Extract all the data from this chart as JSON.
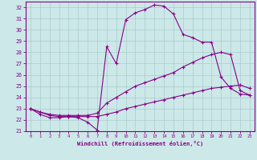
{
  "bg_color": "#cce8e8",
  "grid_color": "#aacccc",
  "line_color": "#880088",
  "xlim": [
    -0.5,
    23.5
  ],
  "ylim": [
    21,
    32.5
  ],
  "xticks": [
    0,
    1,
    2,
    3,
    4,
    5,
    6,
    7,
    8,
    9,
    10,
    11,
    12,
    13,
    14,
    15,
    16,
    17,
    18,
    19,
    20,
    21,
    22,
    23
  ],
  "yticks": [
    21,
    22,
    23,
    24,
    25,
    26,
    27,
    28,
    29,
    30,
    31,
    32
  ],
  "xlabel": "Windchill (Refroidissement éolien,°C)",
  "line1_x": [
    0,
    1,
    2,
    3,
    4,
    5,
    6,
    7,
    8,
    9,
    10,
    11,
    12,
    13,
    14,
    15,
    16,
    17,
    18,
    19,
    20,
    21,
    22,
    23
  ],
  "line1_y": [
    23.0,
    22.5,
    22.2,
    22.2,
    22.3,
    22.2,
    21.8,
    21.1,
    28.5,
    27.0,
    30.9,
    31.5,
    31.8,
    32.2,
    32.1,
    31.4,
    29.6,
    29.3,
    28.9,
    28.9,
    25.8,
    24.8,
    24.3,
    24.2
  ],
  "line2_x": [
    0,
    1,
    2,
    3,
    4,
    5,
    6,
    7,
    8,
    9,
    10,
    11,
    12,
    13,
    14,
    15,
    16,
    17,
    18,
    19,
    20,
    21,
    22,
    23
  ],
  "line2_y": [
    23.0,
    22.7,
    22.4,
    22.3,
    22.3,
    22.3,
    22.3,
    22.3,
    22.5,
    22.7,
    23.0,
    23.2,
    23.4,
    23.6,
    23.8,
    24.0,
    24.2,
    24.4,
    24.6,
    24.8,
    24.9,
    25.0,
    25.1,
    24.8
  ],
  "line3_x": [
    0,
    1,
    2,
    3,
    4,
    5,
    6,
    7,
    8,
    9,
    10,
    11,
    12,
    13,
    14,
    15,
    16,
    17,
    18,
    19,
    20,
    21,
    22,
    23
  ],
  "line3_y": [
    23.0,
    22.7,
    22.5,
    22.4,
    22.4,
    22.4,
    22.4,
    22.6,
    23.5,
    24.0,
    24.5,
    25.0,
    25.3,
    25.6,
    25.9,
    26.2,
    26.7,
    27.1,
    27.5,
    27.8,
    28.0,
    27.8,
    24.6,
    24.2
  ]
}
